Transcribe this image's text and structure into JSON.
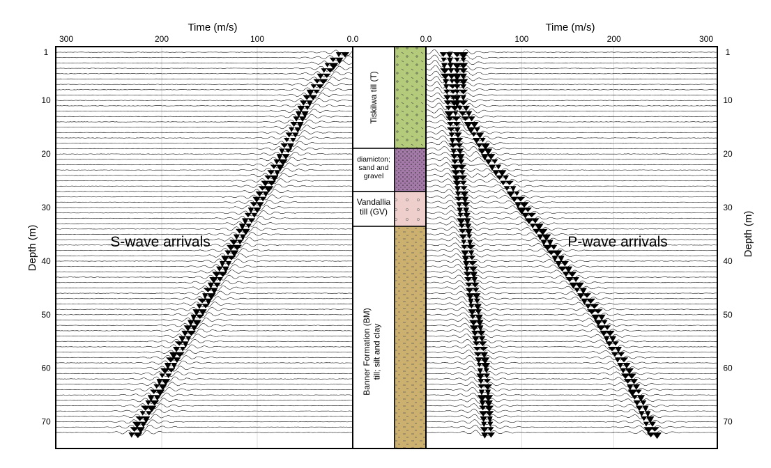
{
  "chart_data": [
    {
      "type": "line",
      "annotation": "S-wave arrivals",
      "xlabel": "Time (m/s)",
      "ylabel": "Depth (m)",
      "xlim": [
        300,
        0
      ],
      "ylim": [
        1,
        72
      ],
      "xticks": [
        "300",
        "200",
        "100",
        "0.0"
      ],
      "yticks": [
        "1",
        "10",
        "20",
        "30",
        "40",
        "50",
        "60",
        "70"
      ],
      "series": [
        {
          "name": "S-wave first arrival",
          "x": [
            8,
            20,
            45,
            70,
            100,
            130,
            160,
            190,
            225
          ],
          "y": [
            1,
            3,
            10,
            20,
            30,
            40,
            50,
            60,
            72
          ]
        }
      ]
    },
    {
      "type": "line",
      "annotation": "P-wave arrivals",
      "xlabel": "Time (m/s)",
      "ylabel": "Depth (m)",
      "xlim": [
        0,
        300
      ],
      "ylim": [
        1,
        72
      ],
      "xticks": [
        "0.0",
        "100",
        "200",
        "300"
      ],
      "yticks": [
        "1",
        "10",
        "20",
        "30",
        "40",
        "50",
        "60",
        "70"
      ],
      "series": [
        {
          "name": "P-wave first arrival",
          "x": [
            15,
            20,
            27,
            33,
            40,
            47,
            55,
            60
          ],
          "y": [
            1,
            10,
            20,
            30,
            40,
            50,
            60,
            72
          ]
        },
        {
          "name": "P-wave later arrival",
          "x": [
            30,
            60,
            100,
            140,
            180,
            210,
            240
          ],
          "y": [
            10,
            20,
            30,
            40,
            50,
            60,
            72
          ]
        }
      ]
    }
  ],
  "stratigraphy": {
    "units": [
      {
        "label": "Tiskilwa till (T)",
        "top": 1,
        "bottom": 20,
        "color": "#b5cb7c",
        "pattern": "dash-circle"
      },
      {
        "label": "diamicton; sand and gravel",
        "top": 20,
        "bottom": 28,
        "color": "#a47aa8",
        "pattern": "dots"
      },
      {
        "label": "Vandallia till (GV)",
        "top": 28,
        "bottom": 35,
        "color": "#eecfcc",
        "pattern": "sparse-circle"
      },
      {
        "label": "Banner Formation (BM) till; silt and clay",
        "top": 35,
        "bottom": 72,
        "color": "#cbb070",
        "pattern": "dashes"
      }
    ]
  }
}
